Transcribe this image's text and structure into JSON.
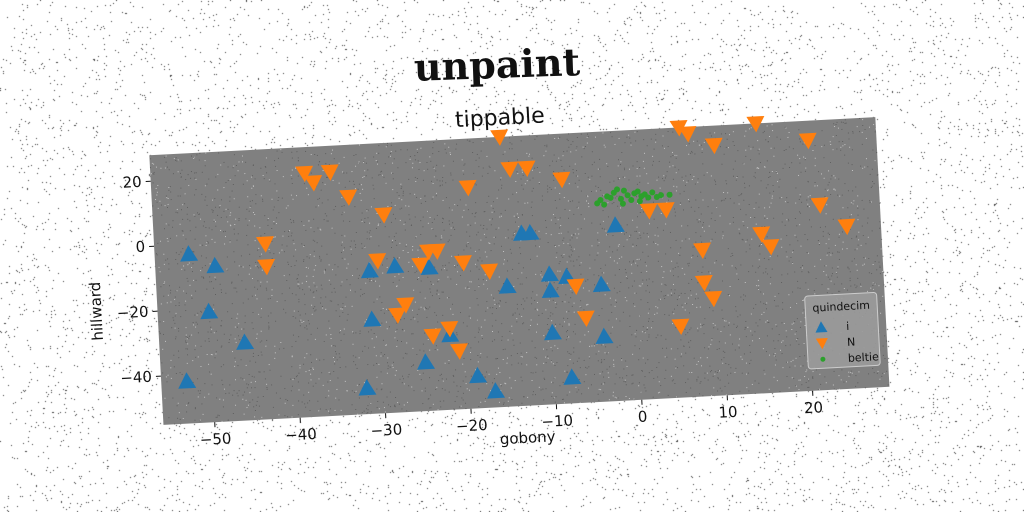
{
  "suptitle": "unpaint",
  "colors": {
    "plot_background": "#808080",
    "series_i": "#1f77b4",
    "series_n": "#ff7f0e",
    "series_beltie": "#2ca02c"
  },
  "chart_data": {
    "type": "scatter",
    "title": "tippable",
    "xlabel": "gobony",
    "ylabel": "hillward",
    "xlim": [
      -56,
      29
    ],
    "ylim": [
      -55,
      28
    ],
    "xticks": [
      -50,
      -40,
      -30,
      -20,
      -10,
      0,
      10,
      20
    ],
    "yticks": [
      20,
      0,
      -20,
      -40
    ],
    "x_tick_labels": [
      "−50",
      "−40",
      "−30",
      "−20",
      "−10",
      "0",
      "10",
      "20"
    ],
    "y_tick_labels": [
      "20",
      "0",
      "−20",
      "−40"
    ],
    "grid": false,
    "legend": {
      "title": "quindecim",
      "placement": "bottom-right"
    },
    "series": [
      {
        "name": "i",
        "marker": "triangle-up",
        "color": "#1f77b4",
        "points": [
          {
            "x": -52,
            "y": -3
          },
          {
            "x": -49,
            "y": -7
          },
          {
            "x": -50,
            "y": -21
          },
          {
            "x": -46,
            "y": -31
          },
          {
            "x": -53,
            "y": -42
          },
          {
            "x": -31,
            "y": -11
          },
          {
            "x": -31,
            "y": -26
          },
          {
            "x": -28,
            "y": -10
          },
          {
            "x": -24,
            "y": -11
          },
          {
            "x": -22,
            "y": -32
          },
          {
            "x": -25,
            "y": -40
          },
          {
            "x": -19,
            "y": -45
          },
          {
            "x": -17,
            "y": -50
          },
          {
            "x": -32,
            "y": -47
          },
          {
            "x": -15,
            "y": -18
          },
          {
            "x": -13,
            "y": -2
          },
          {
            "x": -12,
            "y": -2
          },
          {
            "x": -10,
            "y": -15
          },
          {
            "x": -10,
            "y": -20
          },
          {
            "x": -8,
            "y": -16
          },
          {
            "x": -10,
            "y": -33
          },
          {
            "x": -8,
            "y": -47
          },
          {
            "x": -4,
            "y": -19
          },
          {
            "x": -4,
            "y": -35
          },
          {
            "x": -2,
            "y": -1
          }
        ]
      },
      {
        "name": "N",
        "marker": "triangle-down",
        "color": "#ff7f0e",
        "points": [
          {
            "x": -38,
            "y": 20
          },
          {
            "x": -37,
            "y": 17
          },
          {
            "x": -35,
            "y": 20
          },
          {
            "x": -33,
            "y": 12
          },
          {
            "x": -29,
            "y": 6
          },
          {
            "x": -43,
            "y": -1
          },
          {
            "x": -43,
            "y": -8
          },
          {
            "x": -30,
            "y": -8
          },
          {
            "x": -27,
            "y": -22
          },
          {
            "x": -28,
            "y": -25
          },
          {
            "x": -25,
            "y": -10
          },
          {
            "x": -24,
            "y": -6
          },
          {
            "x": -23,
            "y": -6
          },
          {
            "x": -24,
            "y": -32
          },
          {
            "x": -22,
            "y": -30
          },
          {
            "x": -21,
            "y": -37
          },
          {
            "x": -20,
            "y": -10
          },
          {
            "x": -17,
            "y": -13
          },
          {
            "x": -19,
            "y": 13
          },
          {
            "x": -15,
            "y": 28
          },
          {
            "x": -14,
            "y": 18
          },
          {
            "x": -12,
            "y": 18
          },
          {
            "x": -8,
            "y": 14
          },
          {
            "x": -7,
            "y": -19
          },
          {
            "x": -6,
            "y": -29
          },
          {
            "x": 2,
            "y": 3
          },
          {
            "x": 4,
            "y": 3
          },
          {
            "x": 5,
            "y": -33
          },
          {
            "x": 6,
            "y": 28
          },
          {
            "x": 7,
            "y": 26
          },
          {
            "x": 10,
            "y": 22
          },
          {
            "x": 8,
            "y": -10
          },
          {
            "x": 8,
            "y": -20
          },
          {
            "x": 9,
            "y": -25
          },
          {
            "x": 15,
            "y": 28
          },
          {
            "x": 15,
            "y": -6
          },
          {
            "x": 16,
            "y": -10
          },
          {
            "x": 21,
            "y": 22
          },
          {
            "x": 22,
            "y": 2
          },
          {
            "x": 25,
            "y": -5
          }
        ]
      },
      {
        "name": "beltie",
        "marker": "circle",
        "color": "#2ca02c",
        "points": [
          {
            "x": -4.0,
            "y": 6.0
          },
          {
            "x": -3.6,
            "y": 7.0
          },
          {
            "x": -3.2,
            "y": 5.5
          },
          {
            "x": -2.8,
            "y": 8.0
          },
          {
            "x": -2.4,
            "y": 7.5
          },
          {
            "x": -2.0,
            "y": 9.0
          },
          {
            "x": -1.6,
            "y": 10.0
          },
          {
            "x": -1.2,
            "y": 7.0
          },
          {
            "x": -0.8,
            "y": 9.5
          },
          {
            "x": -0.4,
            "y": 8.0
          },
          {
            "x": 0.0,
            "y": 6.5
          },
          {
            "x": 0.4,
            "y": 8.5
          },
          {
            "x": 0.8,
            "y": 9.0
          },
          {
            "x": 1.2,
            "y": 7.5
          },
          {
            "x": 1.6,
            "y": 8.0
          },
          {
            "x": 2.0,
            "y": 7.0
          },
          {
            "x": 2.5,
            "y": 8.5
          },
          {
            "x": 3.0,
            "y": 7.0
          },
          {
            "x": 3.5,
            "y": 7.5
          },
          {
            "x": 4.5,
            "y": 7.5
          },
          {
            "x": -1.0,
            "y": 5.5
          },
          {
            "x": 1.0,
            "y": 6.0
          }
        ]
      }
    ]
  }
}
